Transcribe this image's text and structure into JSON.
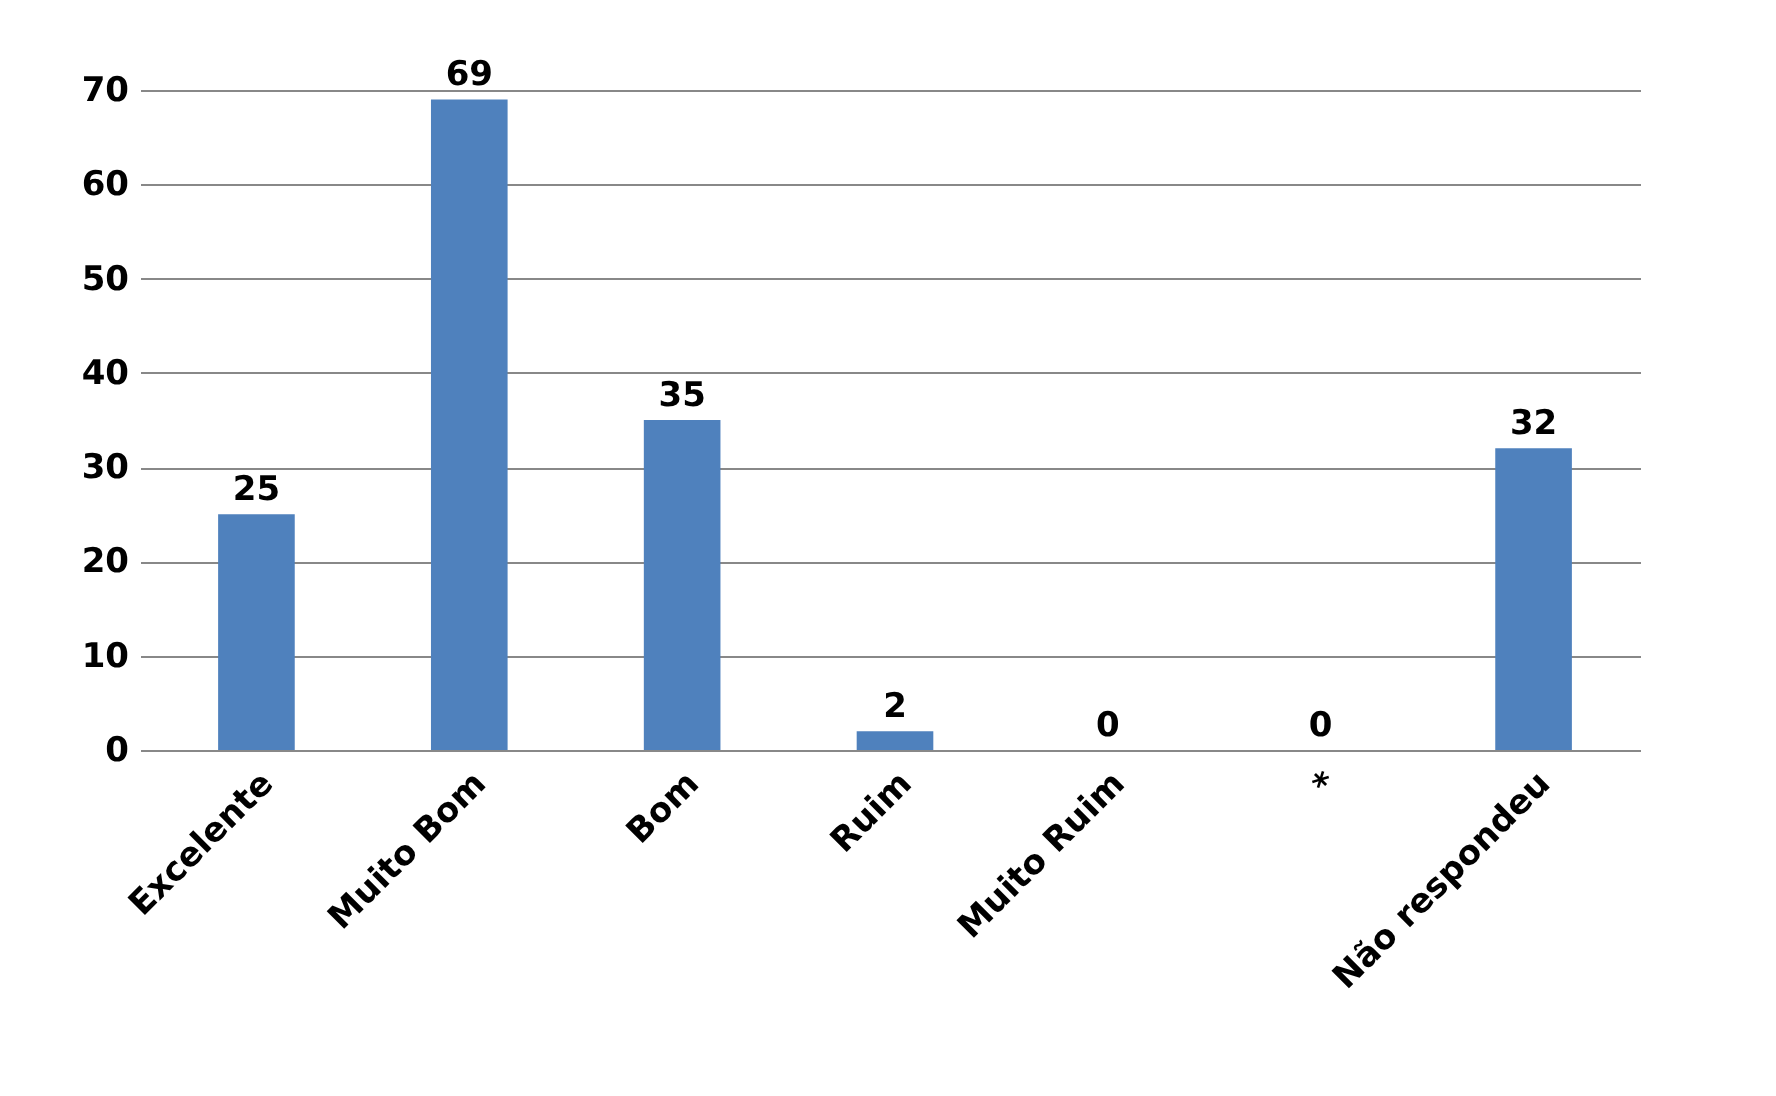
{
  "chart_data": {
    "type": "bar",
    "categories": [
      "Excelente",
      "Muito Bom",
      "Bom",
      "Ruim",
      "Muito Ruim",
      "*",
      "Não respondeu"
    ],
    "values": [
      25,
      69,
      35,
      2,
      0,
      0,
      32
    ],
    "color": "#4f81bd",
    "ylim": [
      0,
      70
    ],
    "yticks": [
      0,
      10,
      20,
      30,
      40,
      50,
      60,
      70
    ],
    "grid": "y",
    "data_labels": true
  }
}
